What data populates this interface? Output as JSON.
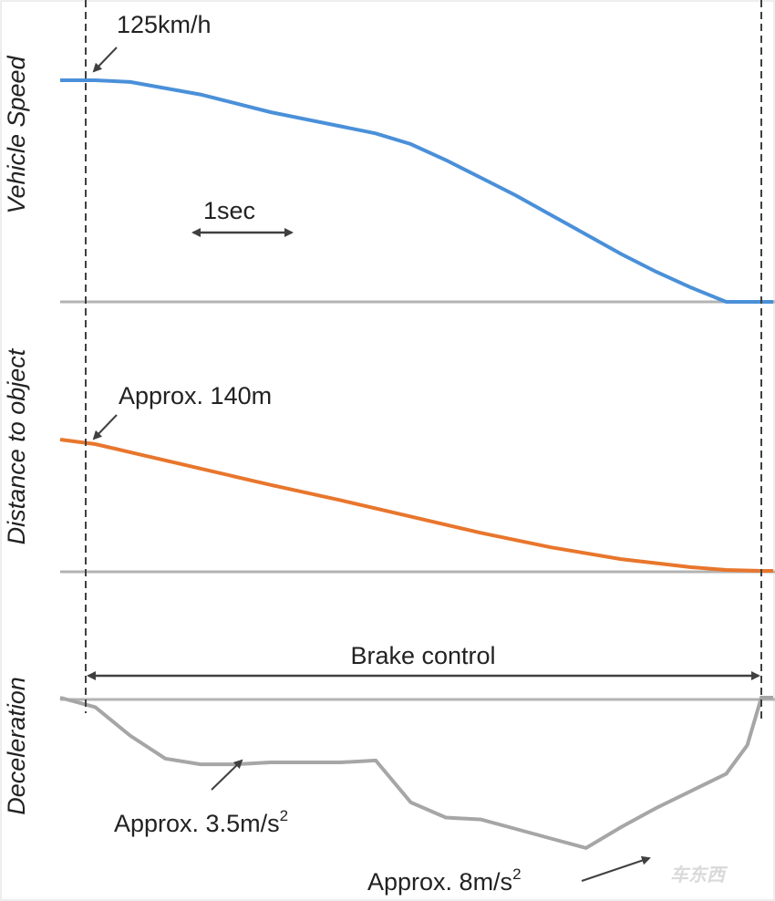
{
  "chart_data": {
    "type": "line",
    "panels": [
      {
        "ylabel": "Vehicle Speed",
        "color": "#4a90d9",
        "x": [
          0,
          0.05,
          0.1,
          0.2,
          0.3,
          0.4,
          0.45,
          0.5,
          0.55,
          0.6,
          0.65,
          0.7,
          0.75,
          0.8,
          0.85,
          0.9,
          0.95,
          1.0,
          1.05
        ],
        "values": [
          125,
          125,
          124,
          117,
          107,
          99,
          95,
          89,
          80,
          70,
          60,
          49,
          38,
          27,
          17,
          8,
          0,
          0,
          0
        ],
        "annotation": "125km/h"
      },
      {
        "ylabel": "Distance to object",
        "color": "#e8762c",
        "x": [
          0,
          0.05,
          0.1,
          0.2,
          0.3,
          0.4,
          0.5,
          0.6,
          0.7,
          0.8,
          0.9,
          0.95,
          1.0,
          1.05
        ],
        "values": [
          145,
          140,
          131,
          113,
          95,
          78,
          60,
          42,
          26,
          13,
          4,
          1,
          0,
          0
        ],
        "annotation": "Approx. 140m"
      },
      {
        "ylabel": "Deceleration",
        "color": "#a6a6a6",
        "x": [
          0,
          0.05,
          0.1,
          0.15,
          0.2,
          0.25,
          0.3,
          0.35,
          0.4,
          0.45,
          0.5,
          0.55,
          0.6,
          0.65,
          0.7,
          0.75,
          0.8,
          0.85,
          0.9,
          0.95,
          0.98,
          1.0,
          1.02
        ],
        "values": [
          0,
          -0.5,
          -2,
          -3.2,
          -3.5,
          -3.5,
          -3.4,
          -3.4,
          -3.4,
          -3.3,
          -5.5,
          -6.3,
          -6.4,
          -6.9,
          -7.4,
          -7.9,
          -6.8,
          -5.8,
          -4.9,
          -4.0,
          -2.5,
          0,
          0
        ],
        "annotations": [
          "Approx. 3.5m/s",
          "Approx. 8m/s"
        ],
        "annotation_superscript": "2"
      }
    ],
    "scale_bar_label": "1sec",
    "range_label": "Brake control",
    "watermark": "车东西"
  }
}
